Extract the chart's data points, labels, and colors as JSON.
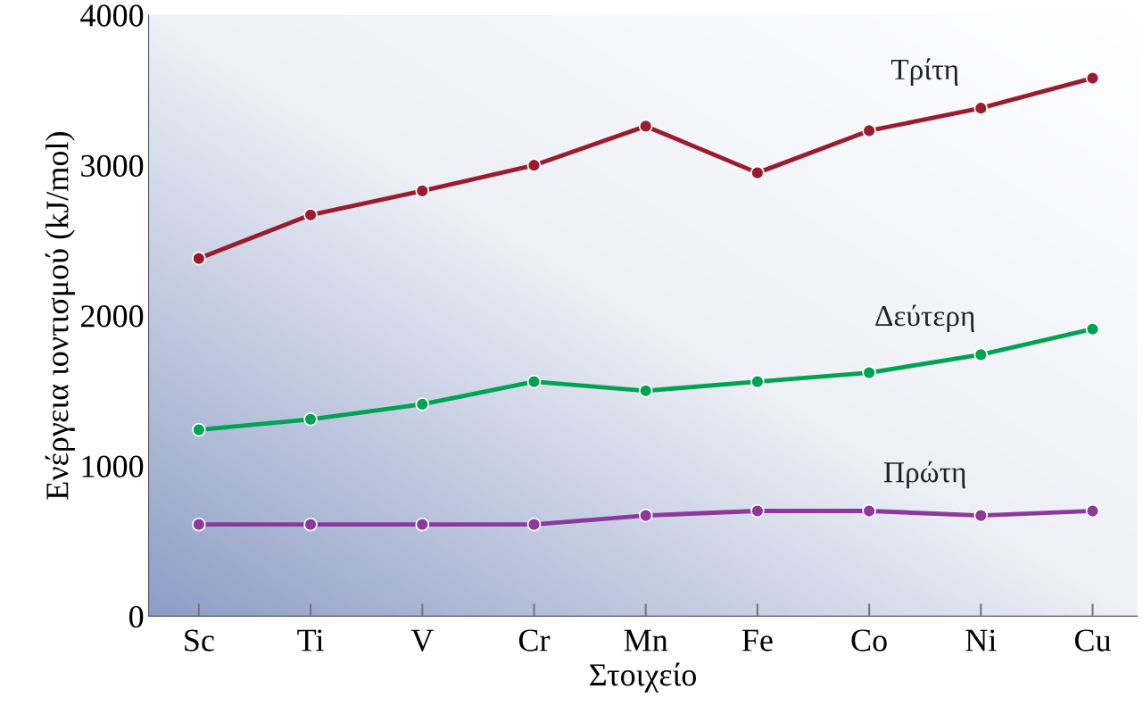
{
  "chart_data": {
    "type": "line",
    "xlabel": "Στοιχείο",
    "ylabel": "Ενέργεια ιοντισμού (kJ/mol)",
    "categories": [
      "Sc",
      "Ti",
      "V",
      "Cr",
      "Mn",
      "Fe",
      "Co",
      "Ni",
      "Cu"
    ],
    "series": [
      {
        "name": "Τρίτη",
        "color": "#9b1c2e",
        "values": [
          2380,
          2670,
          2830,
          3000,
          3260,
          2950,
          3230,
          3380,
          3580
        ]
      },
      {
        "name": "Δεύτερη",
        "color": "#00a352",
        "values": [
          1240,
          1310,
          1410,
          1560,
          1500,
          1560,
          1620,
          1740,
          1910
        ]
      },
      {
        "name": "Πρώτη",
        "color": "#8b3a9b",
        "values": [
          610,
          610,
          610,
          610,
          670,
          700,
          700,
          670,
          700
        ]
      }
    ],
    "ylim": [
      0,
      4000
    ],
    "yticks": [
      0,
      1000,
      2000,
      3000,
      4000
    ],
    "grid": false,
    "legend": false,
    "marker": "circle",
    "line_style": "solid"
  }
}
